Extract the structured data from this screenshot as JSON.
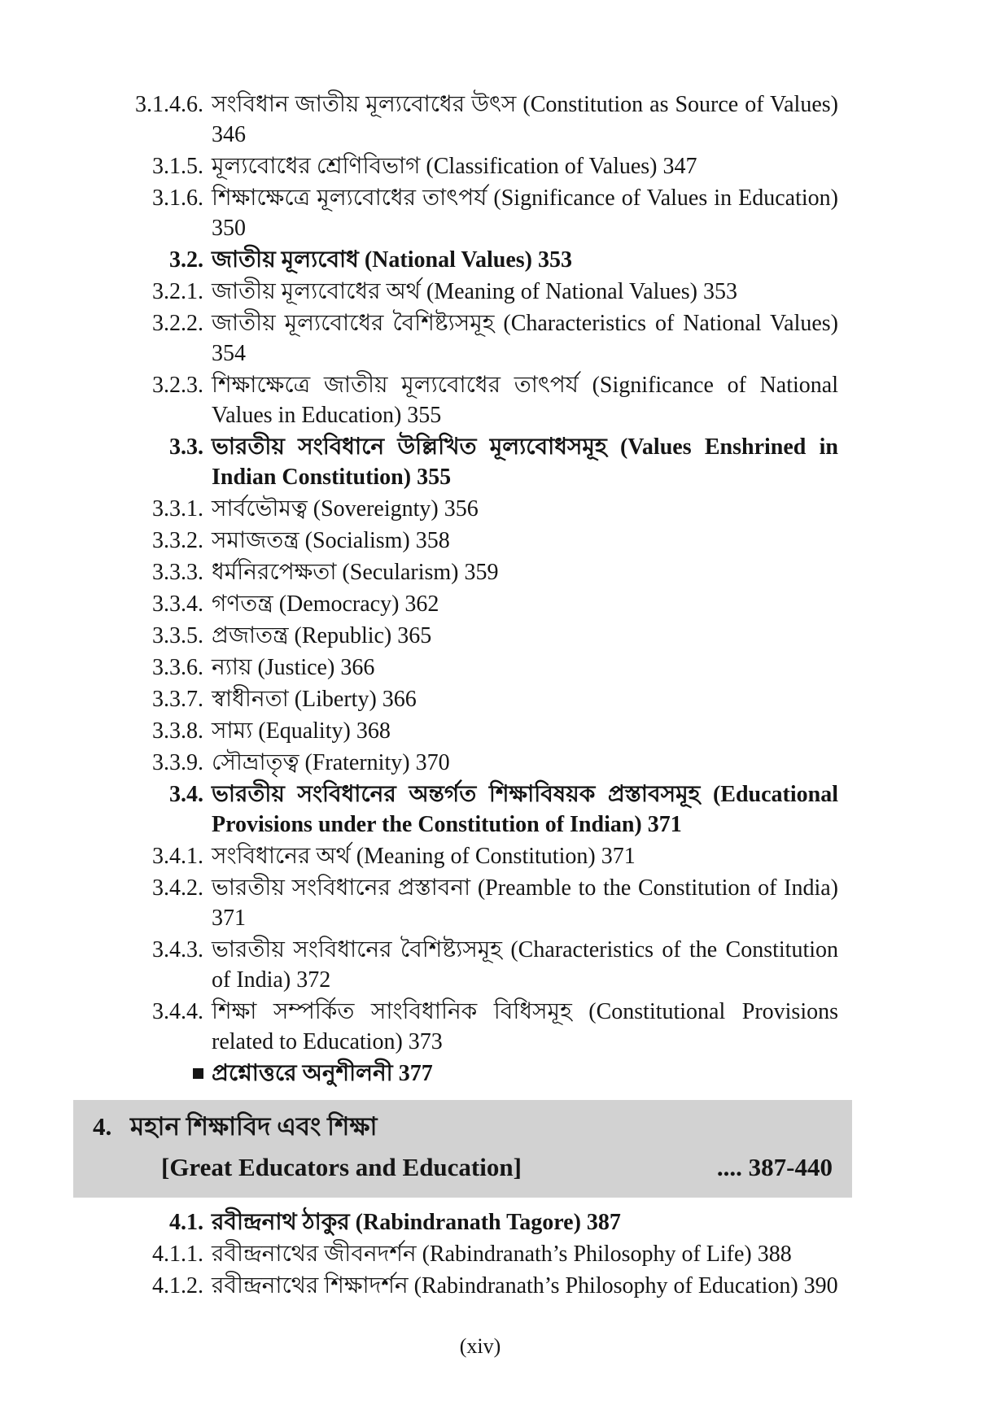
{
  "colors": {
    "page_bg": "#ffffff",
    "text": "#151515",
    "chapter_banner_bg": "#d2d2d2"
  },
  "toc_top": [
    {
      "num": "3.1.4.6.",
      "label": "সংবিধান জাতীয় মূল্যবোধের উৎস (Constitution as Source of Values)",
      "page": "346",
      "bold": false
    },
    {
      "num": "3.1.5.",
      "label": "মূল্যবোধের শ্রেণিবিভাগ (Classification of Values)",
      "page": "347",
      "bold": false
    },
    {
      "num": "3.1.6.",
      "label": "শিক্ষাক্ষেত্রে মূল্যবোধের তাৎপর্য (Significance of Values in Education)",
      "page": "350",
      "bold": false
    },
    {
      "num": "3.2.",
      "label": "জাতীয় মূল্যবোধ (National Values)",
      "page": "353",
      "bold": true
    },
    {
      "num": "3.2.1.",
      "label": "জাতীয় মূল্যবোধের অর্থ (Meaning of National Values)",
      "page": "353",
      "bold": false
    },
    {
      "num": "3.2.2.",
      "label": "জাতীয় মূল্যবোধের বৈশিষ্ট্যসমূহ (Characteristics of National Values)",
      "page": "354",
      "bold": false
    },
    {
      "num": "3.2.3.",
      "label": "শিক্ষাক্ষেত্রে জাতীয় মূল্যবোধের তাৎপর্য (Significance of National Values in Education)",
      "page": "355",
      "bold": false
    },
    {
      "num": "3.3.",
      "label": "ভারতীয় সংবিধানে উল্লিখিত মূল্যবোধসমূহ (Values Enshrined in Indian Constitution)",
      "page": "355",
      "bold": true
    },
    {
      "num": "3.3.1.",
      "label": "সার্বভৌমত্ব (Sovereignty)",
      "page": "356",
      "bold": false
    },
    {
      "num": "3.3.2.",
      "label": "সমাজতন্ত্র (Socialism)",
      "page": "358",
      "bold": false
    },
    {
      "num": "3.3.3.",
      "label": "ধর্মনিরপেক্ষতা (Secularism)",
      "page": "359",
      "bold": false
    },
    {
      "num": "3.3.4.",
      "label": "গণতন্ত্র (Democracy)",
      "page": "362",
      "bold": false
    },
    {
      "num": "3.3.5.",
      "label": "প্রজাতন্ত্র (Republic)",
      "page": "365",
      "bold": false
    },
    {
      "num": "3.3.6.",
      "label": "ন্যায় (Justice)",
      "page": "366",
      "bold": false
    },
    {
      "num": "3.3.7.",
      "label": "স্বাধীনতা (Liberty)",
      "page": "366",
      "bold": false
    },
    {
      "num": "3.3.8.",
      "label": "সাম্য (Equality)",
      "page": "368",
      "bold": false
    },
    {
      "num": "3.3.9.",
      "label": "সৌভ্রাতৃত্ব (Fraternity)",
      "page": "370",
      "bold": false
    },
    {
      "num": "3.4.",
      "label": "ভারতীয় সংবিধানের অন্তর্গত শিক্ষাবিষয়ক প্রস্তাবসমূহ (Educational Provisions under the Constitution of Indian)",
      "page": "371",
      "bold": true
    },
    {
      "num": "3.4.1.",
      "label": "সংবিধানের অর্থ (Meaning of Constitution)",
      "page": "371",
      "bold": false
    },
    {
      "num": "3.4.2.",
      "label": "ভারতীয় সংবিধানের প্রস্তাবনা (Preamble to the Constitution of India)",
      "page": "371",
      "bold": false
    },
    {
      "num": "3.4.3.",
      "label": "ভারতীয় সংবিধানের বৈশিষ্ট্যসমূহ (Characteristics of the Constitution of India)",
      "page": "372",
      "bold": false
    },
    {
      "num": "3.4.4.",
      "label": "শিক্ষা সম্পর্কিত সাংবিধানিক বিধিসমূহ (Constitutional Provisions related to Education)",
      "page": "373",
      "bold": false
    },
    {
      "num": "",
      "label": "প্রশ্নোত্তরে অনুশীলনী",
      "page": "377",
      "bold": true,
      "bullet": true
    }
  ],
  "chapter4_banner": {
    "number": "4.",
    "title_bn": "মহান শিক্ষাবিদ এবং শিক্ষা",
    "title_en": "[Great Educators and Education]",
    "dots": "....",
    "page_range": "387-440"
  },
  "toc_chapter4": [
    {
      "num": "4.1.",
      "label": "রবীন্দ্রনাথ ঠাকুর (Rabindranath Tagore)",
      "page": "387",
      "bold": true
    },
    {
      "num": "4.1.1.",
      "label": "রবীন্দ্রনাথের জীবনদর্শন (Rabindranath’s  Philosophy of Life)",
      "page": "388",
      "bold": false
    },
    {
      "num": "4.1.2.",
      "label": "রবীন্দ্রনাথের শিক্ষাদর্শন (Rabindranath’s Philosophy of Education)",
      "page": "390",
      "bold": false
    }
  ],
  "footer": {
    "page_label": "(xiv)"
  }
}
